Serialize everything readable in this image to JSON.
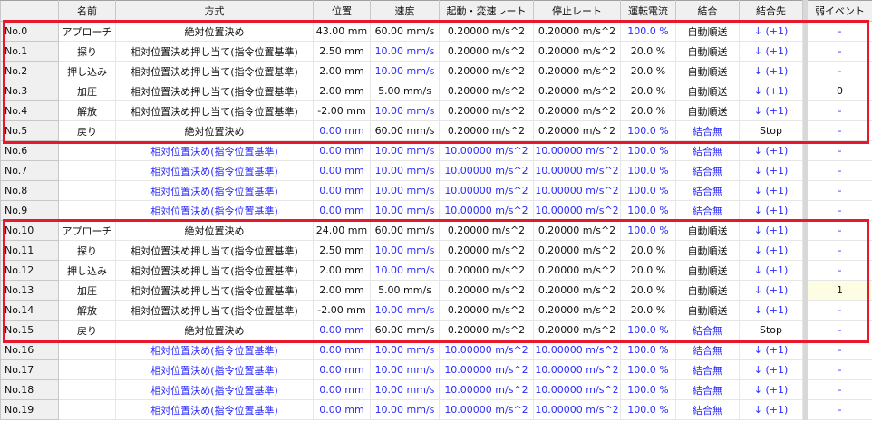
{
  "colors": {
    "default_value": "#2b2bff",
    "highlight_box": "#e8182c",
    "event_highlight": "#fdfde3"
  },
  "headers": [
    "",
    "名前",
    "方式",
    "位置",
    "速度",
    "起動・変速レート",
    "停止レート",
    "運転電流",
    "結合",
    "結合先",
    "弱イベント"
  ],
  "rows": [
    {
      "no": "No.0",
      "name": "アプローチ",
      "method": "絶対位置決め",
      "pos": "43.00 mm",
      "speed": "60.00 mm/s",
      "accel": "0.20000 m/s^2",
      "decel": "0.20000 m/s^2",
      "current": "100.0 %",
      "link": "自動順送",
      "dest": "↓ (+1)",
      "event": "-",
      "blue": [
        "current",
        "dest",
        "event"
      ]
    },
    {
      "no": "No.1",
      "name": "探り",
      "method": "相対位置決め押し当て(指令位置基準)",
      "pos": "2.50 mm",
      "speed": "10.00 mm/s",
      "accel": "0.20000 m/s^2",
      "decel": "0.20000 m/s^2",
      "current": "20.0 %",
      "link": "自動順送",
      "dest": "↓ (+1)",
      "event": "-",
      "blue": [
        "speed",
        "dest",
        "event"
      ]
    },
    {
      "no": "No.2",
      "name": "押し込み",
      "method": "相対位置決め押し当て(指令位置基準)",
      "pos": "2.00 mm",
      "speed": "10.00 mm/s",
      "accel": "0.20000 m/s^2",
      "decel": "0.20000 m/s^2",
      "current": "20.0 %",
      "link": "自動順送",
      "dest": "↓ (+1)",
      "event": "-",
      "blue": [
        "speed",
        "dest",
        "event"
      ]
    },
    {
      "no": "No.3",
      "name": "加圧",
      "method": "相対位置決め押し当て(指令位置基準)",
      "pos": "2.00 mm",
      "speed": "5.00 mm/s",
      "accel": "0.20000 m/s^2",
      "decel": "0.20000 m/s^2",
      "current": "20.0 %",
      "link": "自動順送",
      "dest": "↓ (+1)",
      "event": "0",
      "blue": [
        "dest"
      ]
    },
    {
      "no": "No.4",
      "name": "解放",
      "method": "相対位置決め押し当て(指令位置基準)",
      "pos": "-2.00 mm",
      "speed": "10.00 mm/s",
      "accel": "0.20000 m/s^2",
      "decel": "0.20000 m/s^2",
      "current": "20.0 %",
      "link": "自動順送",
      "dest": "↓ (+1)",
      "event": "-",
      "blue": [
        "speed",
        "dest",
        "event"
      ]
    },
    {
      "no": "No.5",
      "name": "戻り",
      "method": "絶対位置決め",
      "pos": "0.00 mm",
      "speed": "60.00 mm/s",
      "accel": "0.20000 m/s^2",
      "decel": "0.20000 m/s^2",
      "current": "100.0 %",
      "link": "結合無",
      "dest": "Stop",
      "event": "-",
      "blue": [
        "pos",
        "current",
        "link",
        "event"
      ]
    },
    {
      "no": "No.6",
      "name": "",
      "method": "相対位置決め(指令位置基準)",
      "pos": "0.00 mm",
      "speed": "10.00 mm/s",
      "accel": "10.00000 m/s^2",
      "decel": "10.00000 m/s^2",
      "current": "100.0 %",
      "link": "結合無",
      "dest": "↓ (+1)",
      "event": "-",
      "blue": [
        "method",
        "pos",
        "speed",
        "accel",
        "decel",
        "current",
        "link",
        "dest",
        "event"
      ]
    },
    {
      "no": "No.7",
      "name": "",
      "method": "相対位置決め(指令位置基準)",
      "pos": "0.00 mm",
      "speed": "10.00 mm/s",
      "accel": "10.00000 m/s^2",
      "decel": "10.00000 m/s^2",
      "current": "100.0 %",
      "link": "結合無",
      "dest": "↓ (+1)",
      "event": "-",
      "blue": [
        "method",
        "pos",
        "speed",
        "accel",
        "decel",
        "current",
        "link",
        "dest",
        "event"
      ]
    },
    {
      "no": "No.8",
      "name": "",
      "method": "相対位置決め(指令位置基準)",
      "pos": "0.00 mm",
      "speed": "10.00 mm/s",
      "accel": "10.00000 m/s^2",
      "decel": "10.00000 m/s^2",
      "current": "100.0 %",
      "link": "結合無",
      "dest": "↓ (+1)",
      "event": "-",
      "blue": [
        "method",
        "pos",
        "speed",
        "accel",
        "decel",
        "current",
        "link",
        "dest",
        "event"
      ]
    },
    {
      "no": "No.9",
      "name": "",
      "method": "相対位置決め(指令位置基準)",
      "pos": "0.00 mm",
      "speed": "10.00 mm/s",
      "accel": "10.00000 m/s^2",
      "decel": "10.00000 m/s^2",
      "current": "100.0 %",
      "link": "結合無",
      "dest": "↓ (+1)",
      "event": "-",
      "blue": [
        "method",
        "pos",
        "speed",
        "accel",
        "decel",
        "current",
        "link",
        "dest",
        "event"
      ]
    },
    {
      "no": "No.10",
      "name": "アプローチ",
      "method": "絶対位置決め",
      "pos": "24.00 mm",
      "speed": "60.00 mm/s",
      "accel": "0.20000 m/s^2",
      "decel": "0.20000 m/s^2",
      "current": "100.0 %",
      "link": "自動順送",
      "dest": "↓ (+1)",
      "event": "-",
      "blue": [
        "current",
        "dest",
        "event"
      ]
    },
    {
      "no": "No.11",
      "name": "探り",
      "method": "相対位置決め押し当て(指令位置基準)",
      "pos": "2.50 mm",
      "speed": "10.00 mm/s",
      "accel": "0.20000 m/s^2",
      "decel": "0.20000 m/s^2",
      "current": "20.0 %",
      "link": "自動順送",
      "dest": "↓ (+1)",
      "event": "-",
      "blue": [
        "speed",
        "dest",
        "event"
      ]
    },
    {
      "no": "No.12",
      "name": "押し込み",
      "method": "相対位置決め押し当て(指令位置基準)",
      "pos": "2.00 mm",
      "speed": "10.00 mm/s",
      "accel": "0.20000 m/s^2",
      "decel": "0.20000 m/s^2",
      "current": "20.0 %",
      "link": "自動順送",
      "dest": "↓ (+1)",
      "event": "-",
      "blue": [
        "speed",
        "dest",
        "event"
      ]
    },
    {
      "no": "No.13",
      "name": "加圧",
      "method": "相対位置決め押し当て(指令位置基準)",
      "pos": "2.00 mm",
      "speed": "5.00 mm/s",
      "accel": "0.20000 m/s^2",
      "decel": "0.20000 m/s^2",
      "current": "20.0 %",
      "link": "自動順送",
      "dest": "↓ (+1)",
      "event": "1",
      "blue": [
        "dest"
      ],
      "event_highlight": true
    },
    {
      "no": "No.14",
      "name": "解放",
      "method": "相対位置決め押し当て(指令位置基準)",
      "pos": "-2.00 mm",
      "speed": "10.00 mm/s",
      "accel": "0.20000 m/s^2",
      "decel": "0.20000 m/s^2",
      "current": "20.0 %",
      "link": "自動順送",
      "dest": "↓ (+1)",
      "event": "-",
      "blue": [
        "speed",
        "dest",
        "event"
      ]
    },
    {
      "no": "No.15",
      "name": "戻り",
      "method": "絶対位置決め",
      "pos": "0.00 mm",
      "speed": "60.00 mm/s",
      "accel": "0.20000 m/s^2",
      "decel": "0.20000 m/s^2",
      "current": "100.0 %",
      "link": "結合無",
      "dest": "Stop",
      "event": "-",
      "blue": [
        "pos",
        "current",
        "link",
        "event"
      ]
    },
    {
      "no": "No.16",
      "name": "",
      "method": "相対位置決め(指令位置基準)",
      "pos": "0.00 mm",
      "speed": "10.00 mm/s",
      "accel": "10.00000 m/s^2",
      "decel": "10.00000 m/s^2",
      "current": "100.0 %",
      "link": "結合無",
      "dest": "↓ (+1)",
      "event": "-",
      "blue": [
        "method",
        "pos",
        "speed",
        "accel",
        "decel",
        "current",
        "link",
        "dest",
        "event"
      ]
    },
    {
      "no": "No.17",
      "name": "",
      "method": "相対位置決め(指令位置基準)",
      "pos": "0.00 mm",
      "speed": "10.00 mm/s",
      "accel": "10.00000 m/s^2",
      "decel": "10.00000 m/s^2",
      "current": "100.0 %",
      "link": "結合無",
      "dest": "↓ (+1)",
      "event": "-",
      "blue": [
        "method",
        "pos",
        "speed",
        "accel",
        "decel",
        "current",
        "link",
        "dest",
        "event"
      ]
    },
    {
      "no": "No.18",
      "name": "",
      "method": "相対位置決め(指令位置基準)",
      "pos": "0.00 mm",
      "speed": "10.00 mm/s",
      "accel": "10.00000 m/s^2",
      "decel": "10.00000 m/s^2",
      "current": "100.0 %",
      "link": "結合無",
      "dest": "↓ (+1)",
      "event": "-",
      "blue": [
        "method",
        "pos",
        "speed",
        "accel",
        "decel",
        "current",
        "link",
        "dest",
        "event"
      ]
    },
    {
      "no": "No.19",
      "name": "",
      "method": "相対位置決め(指令位置基準)",
      "pos": "0.00 mm",
      "speed": "10.00 mm/s",
      "accel": "10.00000 m/s^2",
      "decel": "10.00000 m/s^2",
      "current": "100.0 %",
      "link": "結合無",
      "dest": "↓ (+1)",
      "event": "-",
      "blue": [
        "method",
        "pos",
        "speed",
        "accel",
        "decel",
        "current",
        "link",
        "dest",
        "event"
      ]
    }
  ]
}
